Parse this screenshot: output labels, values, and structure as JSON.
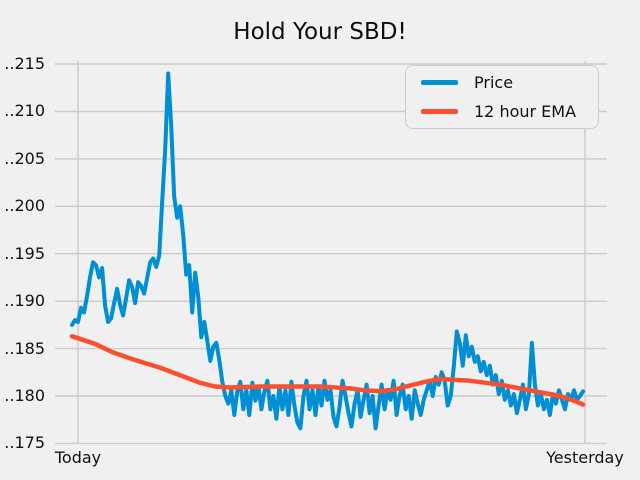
{
  "title": "Hold Your SBD!",
  "colors": {
    "background": "#f0f0f0",
    "grid": "#cbcbcb",
    "price": "#008fd5",
    "ema": "#fc4f30",
    "text": "#111111"
  },
  "legend": {
    "items": [
      {
        "label": "Price",
        "color": "#008fd5"
      },
      {
        "label": "12 hour EMA",
        "color": "#fc4f30"
      }
    ]
  },
  "axes": {
    "ylim_render": [
      0.17494,
      0.21532
    ],
    "y_ticks": [
      {
        "label": "..215",
        "value": 0.215
      },
      {
        "label": "..210",
        "value": 0.21
      },
      {
        "label": "..205",
        "value": 0.205
      },
      {
        "label": "..200",
        "value": 0.2
      },
      {
        "label": "..195",
        "value": 0.195
      },
      {
        "label": "..190",
        "value": 0.19
      },
      {
        "label": "..185",
        "value": 0.185
      },
      {
        "label": "..180",
        "value": 0.18
      },
      {
        "label": "..175",
        "value": 0.175
      }
    ],
    "x_ticks": [
      {
        "label": "Today",
        "axes_frac": 0.0417
      },
      {
        "label": "Yesterday",
        "axes_frac": 0.9601
      }
    ]
  },
  "chart_data": {
    "type": "line",
    "title": "Hold Your SBD!",
    "xlabel": "",
    "ylabel": "",
    "x_axis": {
      "left_label": "Today",
      "right_label": "Yesterday",
      "note": "time runs from Today (left) to Yesterday (right)"
    },
    "ylim": [
      0.175,
      0.215
    ],
    "grid": true,
    "legend_position": "upper right",
    "series": [
      {
        "name": "Price",
        "color": "#008fd5",
        "x_spacing": "uniform",
        "values": [
          0.1875,
          0.188,
          0.1878,
          0.1893,
          0.1888,
          0.1905,
          0.1925,
          0.1941,
          0.1938,
          0.1925,
          0.1935,
          0.1895,
          0.1878,
          0.1882,
          0.1898,
          0.1913,
          0.1896,
          0.1885,
          0.1903,
          0.1922,
          0.1915,
          0.1898,
          0.192,
          0.1916,
          0.1908,
          0.1924,
          0.1941,
          0.1945,
          0.1936,
          0.1948,
          0.2005,
          0.206,
          0.214,
          0.2085,
          0.201,
          0.1988,
          0.2,
          0.197,
          0.1928,
          0.1938,
          0.1888,
          0.193,
          0.1905,
          0.1862,
          0.1878,
          0.1858,
          0.1837,
          0.1852,
          0.1856,
          0.1838,
          0.1815,
          0.18,
          0.1792,
          0.1806,
          0.178,
          0.1805,
          0.1815,
          0.1786,
          0.1806,
          0.178,
          0.1814,
          0.1795,
          0.181,
          0.1786,
          0.1805,
          0.1816,
          0.1786,
          0.18,
          0.1776,
          0.181,
          0.1786,
          0.1806,
          0.178,
          0.1815,
          0.179,
          0.1772,
          0.1766,
          0.18,
          0.1816,
          0.1786,
          0.1806,
          0.178,
          0.181,
          0.179,
          0.1816,
          0.1796,
          0.1806,
          0.1778,
          0.1768,
          0.1788,
          0.1816,
          0.18,
          0.1782,
          0.1768,
          0.1792,
          0.1806,
          0.1778,
          0.1796,
          0.1812,
          0.1782,
          0.18,
          0.1766,
          0.179,
          0.1812,
          0.1786,
          0.1806,
          0.1796,
          0.1816,
          0.178,
          0.18,
          0.1812,
          0.1786,
          0.18,
          0.1776,
          0.1806,
          0.1792,
          0.178,
          0.1796,
          0.1806,
          0.1816,
          0.18,
          0.182,
          0.1812,
          0.1825,
          0.1816,
          0.179,
          0.18,
          0.183,
          0.1868,
          0.1856,
          0.1832,
          0.1864,
          0.1842,
          0.1852,
          0.1836,
          0.1842,
          0.1826,
          0.1836,
          0.1822,
          0.1832,
          0.1812,
          0.1822,
          0.1802,
          0.1816,
          0.1796,
          0.1806,
          0.179,
          0.1802,
          0.1782,
          0.1796,
          0.1812,
          0.1786,
          0.1802,
          0.1856,
          0.1812,
          0.179,
          0.1802,
          0.1786,
          0.1796,
          0.178,
          0.1802,
          0.1792,
          0.1806,
          0.1796,
          0.1786,
          0.1802,
          0.1796,
          0.1806,
          0.1796,
          0.18,
          0.1805
        ]
      },
      {
        "name": "12 hour EMA",
        "color": "#fc4f30",
        "x_frac": [
          0,
          0.045,
          0.08,
          0.123,
          0.172,
          0.211,
          0.25,
          0.28,
          0.309,
          0.368,
          0.427,
          0.485,
          0.544,
          0.573,
          0.603,
          0.632,
          0.661,
          0.691,
          0.72,
          0.749,
          0.779,
          0.808,
          0.838,
          0.867,
          0.896,
          0.926,
          0.955,
          0.978,
          1
        ],
        "values": [
          0.1863,
          0.1855,
          0.1846,
          0.1838,
          0.183,
          0.1822,
          0.1814,
          0.181,
          0.1809,
          0.181,
          0.181,
          0.181,
          0.1808,
          0.1806,
          0.1805,
          0.1807,
          0.1811,
          0.1815,
          0.1818,
          0.1817,
          0.1816,
          0.1814,
          0.1812,
          0.1809,
          0.1806,
          0.1803,
          0.18,
          0.1796,
          0.1791
        ]
      }
    ]
  }
}
